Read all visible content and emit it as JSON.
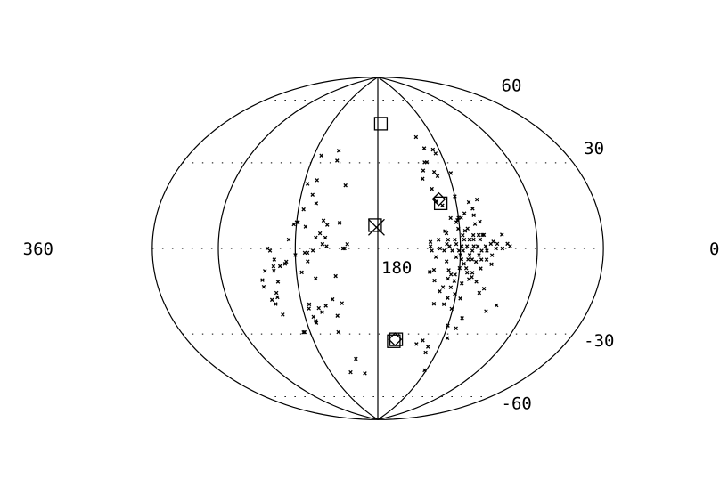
{
  "chart_data": {
    "type": "scatter",
    "projection": "aitoff-hammer (all-sky ellipse)",
    "grid": true,
    "xlim": [
      360,
      0
    ],
    "ylim": [
      -90,
      90
    ],
    "meridians": [
      0,
      60,
      120,
      180,
      240,
      300,
      360
    ],
    "parallels": [
      -60,
      -30,
      0,
      30,
      60
    ],
    "tick_labels": {
      "lon": [
        {
          "value": 360,
          "text": "360"
        },
        {
          "value": 180,
          "text": "180"
        },
        {
          "value": 0,
          "text": "0"
        }
      ],
      "lat": [
        {
          "value": 60,
          "text": "60"
        },
        {
          "value": 30,
          "text": "30"
        },
        {
          "value": -30,
          "text": "-30"
        },
        {
          "value": -60,
          "text": "-60"
        }
      ]
    },
    "series": [
      {
        "marker": "x-small",
        "points": [
          [
            233,
            44
          ],
          [
            230,
            32
          ],
          [
            237,
            30
          ],
          [
            218,
            47
          ],
          [
            217,
            42
          ],
          [
            231,
            25
          ],
          [
            227,
            21
          ],
          [
            236,
            18
          ],
          [
            242,
            11
          ],
          [
            240,
            12
          ],
          [
            239,
            12
          ],
          [
            233,
            10
          ],
          [
            217,
            11
          ],
          [
            220,
            13
          ],
          [
            222,
            7
          ],
          [
            218,
            5
          ],
          [
            225,
            5
          ],
          [
            245,
            4
          ],
          [
            208,
            12
          ],
          [
            206,
            30
          ],
          [
            202,
            2
          ],
          [
            204,
            0
          ],
          [
            205,
            0
          ],
          [
            217,
            1
          ],
          [
            220,
            2
          ],
          [
            227,
            -1
          ],
          [
            231,
            -2
          ],
          [
            233,
            -2
          ],
          [
            240,
            -3
          ],
          [
            261,
            0
          ],
          [
            259,
            -1
          ],
          [
            256,
            -5
          ],
          [
            252,
            -8
          ],
          [
            248,
            -7
          ],
          [
            247,
            -6
          ],
          [
            231,
            -6
          ],
          [
            236,
            -11
          ],
          [
            257,
            -8
          ],
          [
            264,
            -10
          ],
          [
            257,
            -10
          ],
          [
            255,
            -15
          ],
          [
            267,
            -14
          ],
          [
            267,
            -17
          ],
          [
            258,
            -20
          ],
          [
            258,
            -22
          ],
          [
            263,
            -23
          ],
          [
            261,
            -25
          ],
          [
            211,
            -13
          ],
          [
            215,
            -24
          ],
          [
            234,
            -26
          ],
          [
            235,
            -28
          ],
          [
            225,
            -30
          ],
          [
            227,
            -28
          ],
          [
            258,
            -30
          ],
          [
            233,
            -32
          ],
          [
            232,
            -34
          ],
          [
            232,
            -35
          ],
          [
            245,
            -39
          ],
          [
            215,
            -40
          ],
          [
            215,
            -61
          ],
          [
            197,
            -62
          ],
          [
            204,
            -54
          ],
          [
            208,
            -26
          ],
          [
            213,
            -32
          ],
          [
            221,
            -27
          ],
          [
            226,
            -14
          ],
          [
            246,
            -39
          ]
        ]
      },
      {
        "marker": "x-small",
        "points": [
          [
            138,
            54
          ],
          [
            134,
            48
          ],
          [
            126,
            47
          ],
          [
            125,
            45
          ],
          [
            136,
            41
          ],
          [
            138,
            41
          ],
          [
            141,
            37
          ],
          [
            118,
            35
          ],
          [
            130,
            34
          ],
          [
            143,
            33
          ],
          [
            137,
            28
          ],
          [
            120,
            24
          ],
          [
            110,
            21
          ],
          [
            108,
            18
          ],
          [
            131,
            20
          ],
          [
            115,
            16
          ],
          [
            118,
            14
          ],
          [
            120,
            14
          ],
          [
            121,
            13
          ],
          [
            122,
            12
          ],
          [
            108,
            11
          ],
          [
            121,
            9
          ],
          [
            114,
            9
          ],
          [
            116,
            8
          ],
          [
            131,
            8
          ],
          [
            130,
            7
          ],
          [
            106,
            6
          ],
          [
            102,
            6
          ],
          [
            103,
            6
          ],
          [
            110,
            6
          ],
          [
            118,
            6
          ],
          [
            105,
            4
          ],
          [
            110,
            4
          ],
          [
            113,
            4
          ],
          [
            117,
            4
          ],
          [
            124,
            4
          ],
          [
            129,
            4
          ],
          [
            136,
            4
          ],
          [
            95,
            3
          ],
          [
            97,
            2
          ],
          [
            92,
            2
          ],
          [
            84,
            2
          ],
          [
            130,
            2
          ],
          [
            142,
            3
          ],
          [
            101,
            1
          ],
          [
            107,
            1
          ],
          [
            110,
            1
          ],
          [
            115,
            1
          ],
          [
            119,
            1
          ],
          [
            123,
            2
          ],
          [
            128,
            1
          ],
          [
            135,
            0
          ],
          [
            142,
            1
          ],
          [
            93,
            0
          ],
          [
            88,
            0
          ],
          [
            100,
            -1
          ],
          [
            104,
            -1
          ],
          [
            111,
            -1
          ],
          [
            118,
            -1
          ],
          [
            121,
            -1
          ],
          [
            126,
            -1
          ],
          [
            132,
            -1
          ],
          [
            141,
            -1
          ],
          [
            96,
            -3
          ],
          [
            106,
            -3
          ],
          [
            113,
            -3
          ],
          [
            120,
            -3
          ],
          [
            123,
            -4
          ],
          [
            138,
            -4
          ],
          [
            100,
            -5
          ],
          [
            104,
            -5
          ],
          [
            111,
            -5
          ],
          [
            114,
            -5
          ],
          [
            119,
            -5
          ],
          [
            130,
            -6
          ],
          [
            96,
            -7
          ],
          [
            108,
            -6
          ],
          [
            117,
            -7
          ],
          [
            104,
            -9
          ],
          [
            115,
            -9
          ],
          [
            120,
            -9
          ],
          [
            128,
            -10
          ],
          [
            139,
            -10
          ],
          [
            142,
            -11
          ],
          [
            110,
            -11
          ],
          [
            114,
            -11
          ],
          [
            123,
            -12
          ],
          [
            126,
            -12
          ],
          [
            112,
            -14
          ],
          [
            117,
            -16
          ],
          [
            125,
            -18
          ],
          [
            131,
            -18
          ],
          [
            128,
            -14
          ],
          [
            123,
            -15
          ],
          [
            106,
            -15
          ],
          [
            110,
            -13
          ],
          [
            99,
            -18
          ],
          [
            85,
            -25
          ],
          [
            92,
            -28
          ],
          [
            121,
            -21
          ],
          [
            126,
            -23
          ],
          [
            133,
            -20
          ],
          [
            138,
            -15
          ],
          [
            102,
            -20
          ],
          [
            116,
            -23
          ],
          [
            128,
            -26
          ],
          [
            136,
            -26
          ],
          [
            116,
            -42
          ],
          [
            138,
            -44
          ],
          [
            143,
            -46
          ],
          [
            131,
            -47
          ],
          [
            131,
            -50
          ],
          [
            122,
            -59
          ],
          [
            120,
            -36
          ],
          [
            112,
            -37
          ],
          [
            110,
            -32
          ],
          [
            121,
            -28
          ],
          [
            104,
            12
          ],
          [
            108,
            15
          ],
          [
            103,
            22
          ],
          [
            88,
            6
          ],
          [
            82,
            1
          ],
          [
            126,
            14
          ],
          [
            132,
            36
          ],
          [
            135,
            22
          ]
        ]
      },
      {
        "marker": "square",
        "points": [
          [
            176,
            62
          ],
          [
            163,
            -44
          ],
          [
            165,
            -45
          ],
          [
            132,
            21
          ],
          [
            182,
            11
          ]
        ]
      },
      {
        "marker": "diamond",
        "points": [
          [
            164,
            -44
          ],
          [
            133,
            23
          ]
        ]
      },
      {
        "marker": "x-large",
        "points": [
          [
            181,
            10
          ]
        ]
      }
    ]
  }
}
